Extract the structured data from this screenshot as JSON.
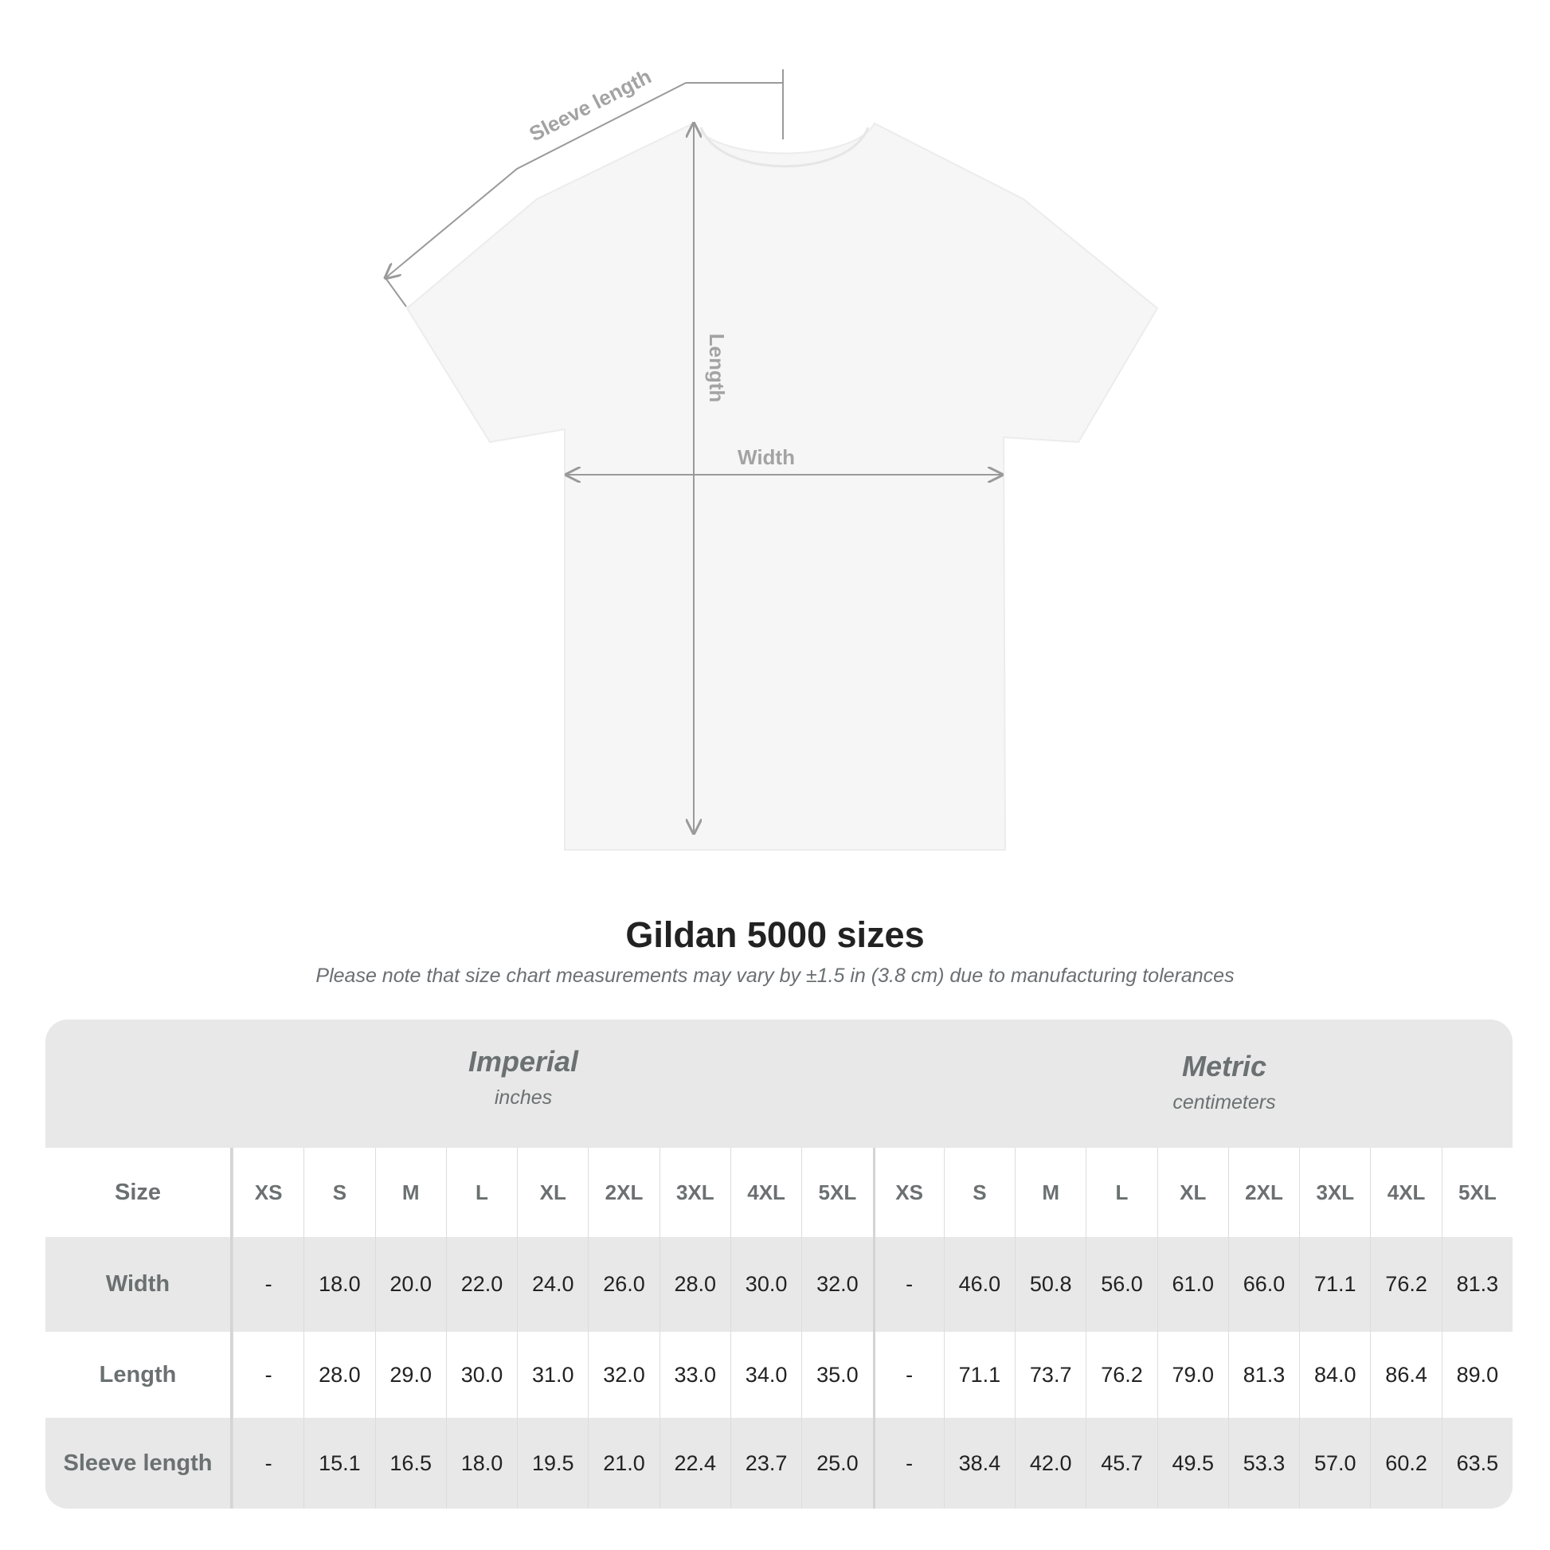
{
  "diagram": {
    "labels": {
      "sleeve": "Sleeve length",
      "length": "Length",
      "width": "Width"
    },
    "colors": {
      "shirt": "#f6f6f6",
      "arrows": "#9a9a9a"
    }
  },
  "title": "Gildan 5000 sizes",
  "subtitle": "Please note that size chart measurements may vary by ±1.5 in (3.8 cm) due to manufacturing tolerances",
  "table": {
    "imperial": {
      "name": "Imperial",
      "unit": "inches"
    },
    "metric": {
      "name": "Metric",
      "unit": "centimeters"
    },
    "size_label": "Size",
    "sizes": [
      "XS",
      "S",
      "M",
      "L",
      "XL",
      "2XL",
      "3XL",
      "4XL",
      "5XL"
    ],
    "rows": [
      {
        "label": "Width",
        "imperial": [
          "-",
          "18.0",
          "20.0",
          "22.0",
          "24.0",
          "26.0",
          "28.0",
          "30.0",
          "32.0"
        ],
        "metric": [
          "-",
          "46.0",
          "50.8",
          "56.0",
          "61.0",
          "66.0",
          "71.1",
          "76.2",
          "81.3"
        ]
      },
      {
        "label": "Length",
        "imperial": [
          "-",
          "28.0",
          "29.0",
          "30.0",
          "31.0",
          "32.0",
          "33.0",
          "34.0",
          "35.0"
        ],
        "metric": [
          "-",
          "71.1",
          "73.7",
          "76.2",
          "79.0",
          "81.3",
          "84.0",
          "86.4",
          "89.0"
        ]
      },
      {
        "label": "Sleeve length",
        "imperial": [
          "-",
          "15.1",
          "16.5",
          "18.0",
          "19.5",
          "21.0",
          "22.4",
          "23.7",
          "25.0"
        ],
        "metric": [
          "-",
          "38.4",
          "42.0",
          "45.7",
          "49.5",
          "53.3",
          "57.0",
          "60.2",
          "63.5"
        ]
      }
    ]
  }
}
